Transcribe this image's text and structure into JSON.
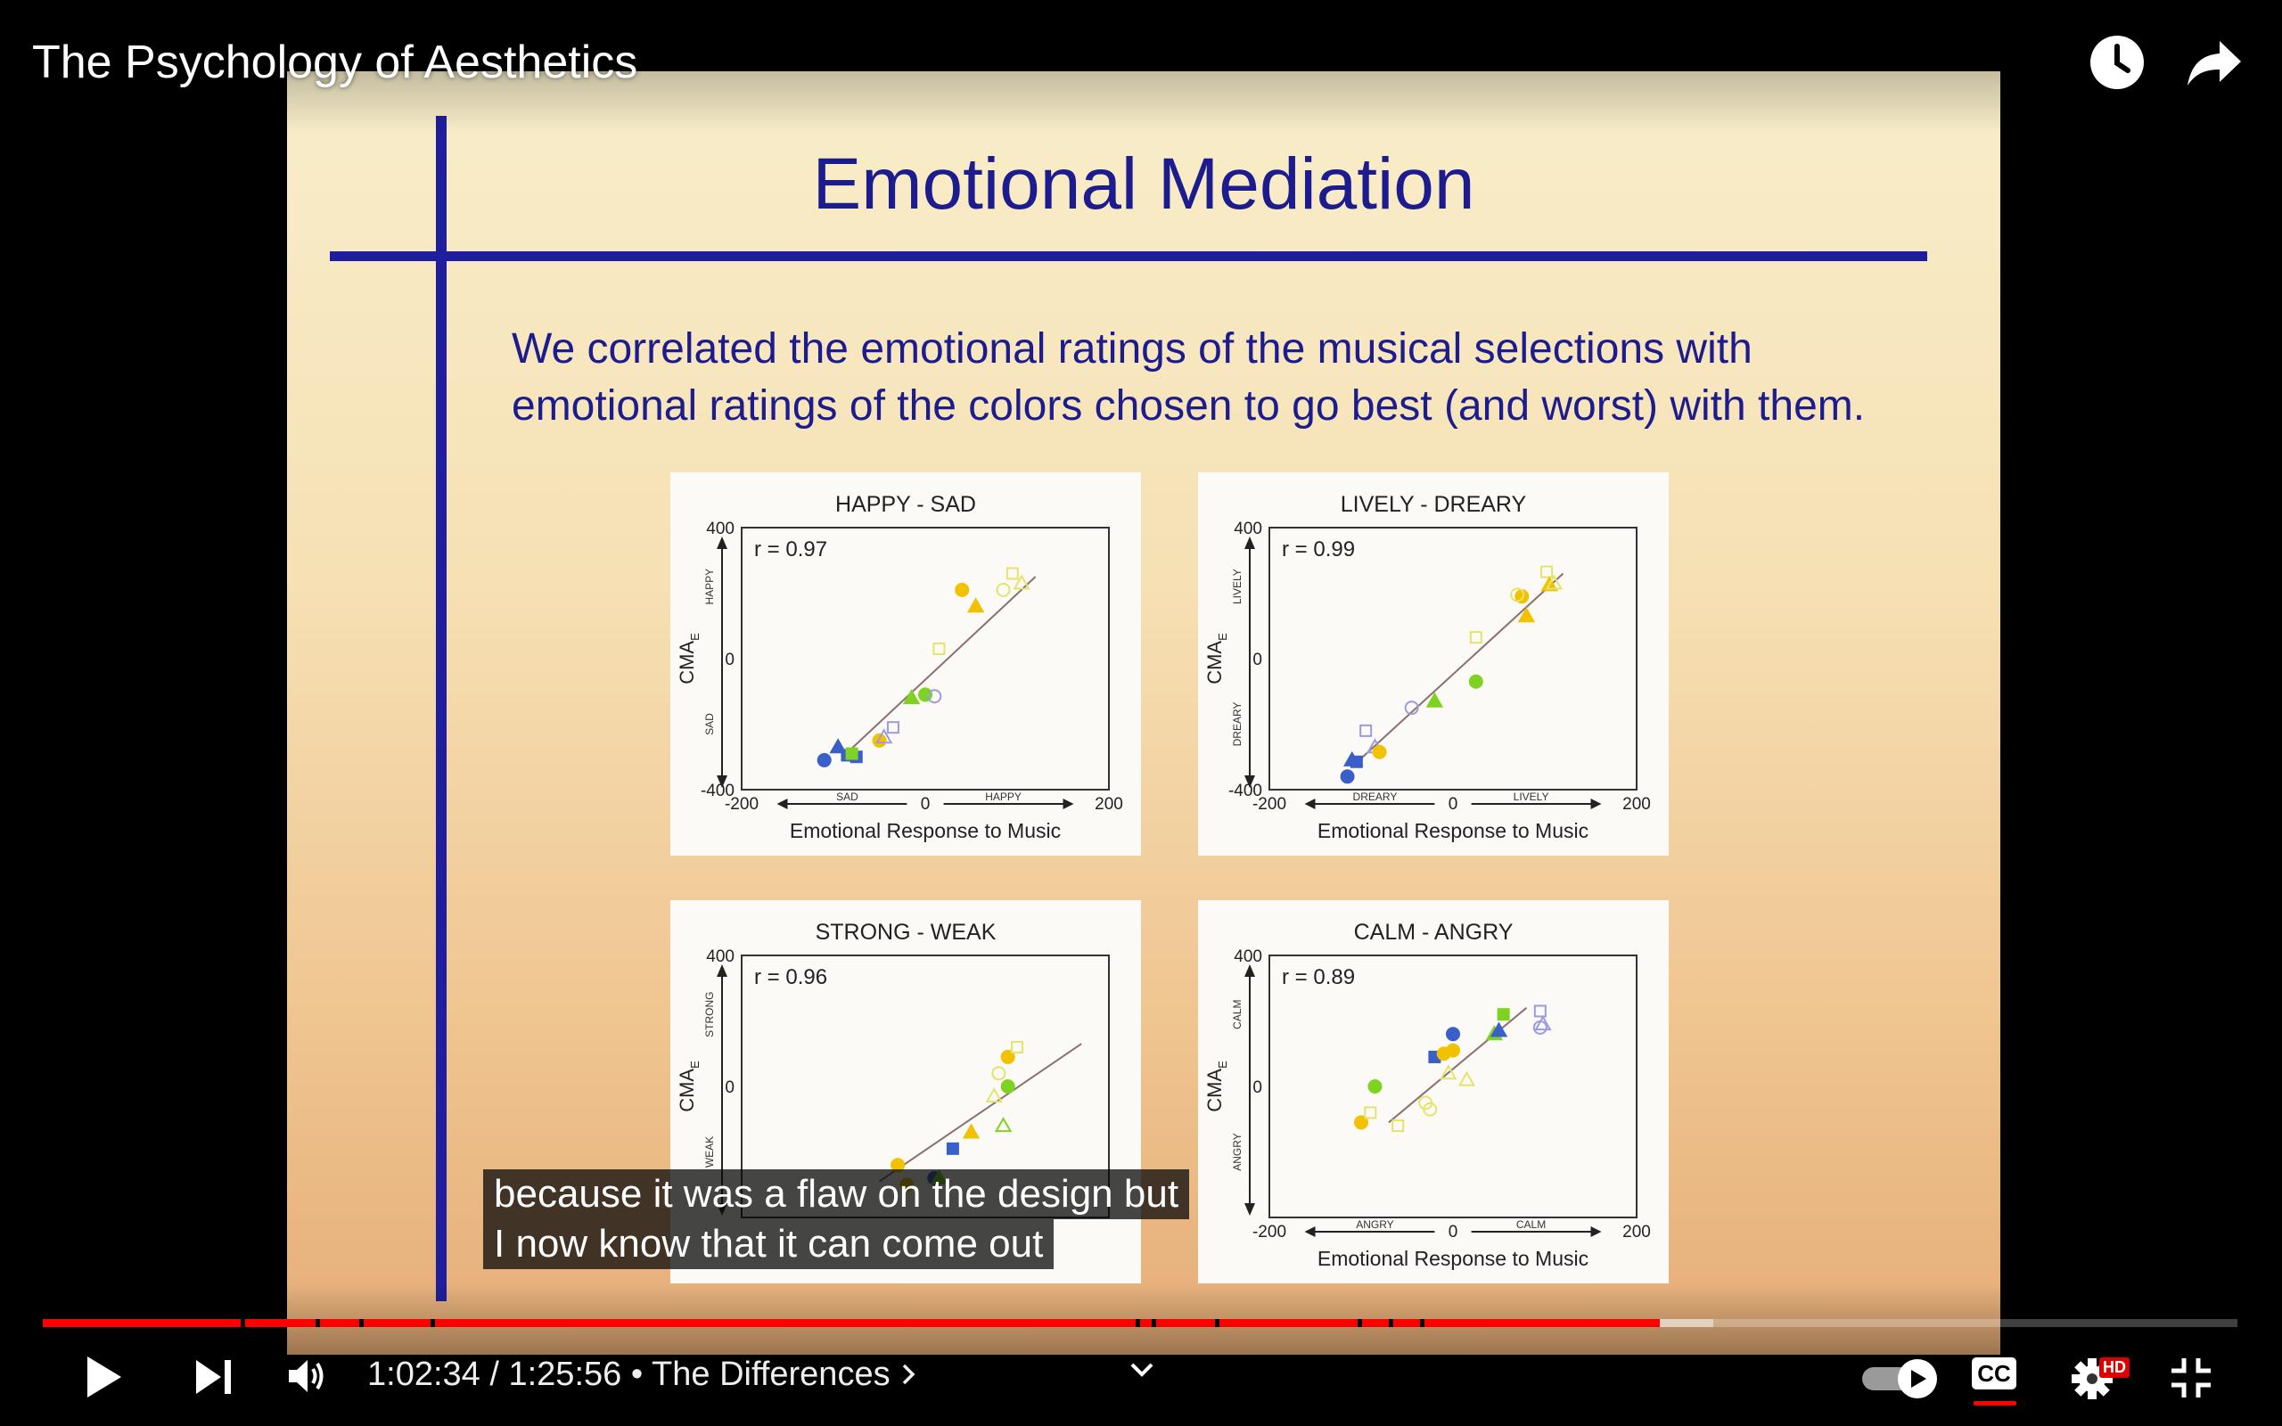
{
  "video": {
    "title": "The Psychology of Aesthetics",
    "time_current": "1:02:34",
    "time_duration": "1:25:56",
    "time_separator": "/",
    "chapter": "The Differences",
    "progress_played": 0.737,
    "progress_loaded": 0.761
  },
  "slide": {
    "title": "Emotional Mediation",
    "body_line1": "We correlated the emotional ratings of the musical selections with",
    "body_line2": "emotional ratings of the colors chosen to go best (and worst) with them."
  },
  "captions": {
    "line1": "because it was a flaw on the design but",
    "line2": "I now know that it can come out"
  },
  "controls": {
    "cc_label": "CC",
    "hd_label": "HD",
    "icons": [
      "play-icon",
      "next-icon",
      "volume-icon",
      "chevron-right-icon",
      "chevron-down-icon",
      "autoplay-toggle-icon",
      "cc-icon",
      "settings-icon",
      "exit-fullscreen-icon",
      "watch-later-icon",
      "share-icon"
    ]
  },
  "chart_data": [
    {
      "type": "scatter",
      "title": "HAPPY - SAD",
      "r_label": "r = 0.97",
      "xlabel": "Emotional Response to Music",
      "ylabel": "CMA",
      "ylabel_sub": "E",
      "xlim": [
        -200,
        200
      ],
      "ylim": [
        -400,
        400
      ],
      "xticks": [
        "-200",
        "0",
        "200"
      ],
      "yticks": [
        "400",
        "0",
        "-400"
      ],
      "x_neg": "SAD",
      "x_pos": "HAPPY",
      "y_neg": "SAD",
      "y_pos": "HAPPY",
      "trend": [
        [
          -90,
          -300
        ],
        [
          120,
          250
        ]
      ],
      "points": [
        {
          "x": -110,
          "y": -310,
          "shape": "circle",
          "fill": true,
          "color": "#3a5fc8"
        },
        {
          "x": -95,
          "y": -270,
          "shape": "triangle",
          "fill": true,
          "color": "#3a5fc8"
        },
        {
          "x": -85,
          "y": -295,
          "shape": "square",
          "fill": true,
          "color": "#3a5fc8"
        },
        {
          "x": -75,
          "y": -300,
          "shape": "square",
          "fill": true,
          "color": "#3a5fc8"
        },
        {
          "x": -80,
          "y": -290,
          "shape": "square",
          "fill": true,
          "color": "#7ed321"
        },
        {
          "x": -50,
          "y": -250,
          "shape": "circle",
          "fill": true,
          "color": "#f2c200"
        },
        {
          "x": -45,
          "y": -240,
          "shape": "triangle",
          "fill": false,
          "color": "#9b9be0"
        },
        {
          "x": -35,
          "y": -210,
          "shape": "square",
          "fill": false,
          "color": "#9b9be0"
        },
        {
          "x": -15,
          "y": -120,
          "shape": "triangle",
          "fill": true,
          "color": "#7ed321"
        },
        {
          "x": 0,
          "y": -110,
          "shape": "circle",
          "fill": true,
          "color": "#7ed321"
        },
        {
          "x": 10,
          "y": -115,
          "shape": "circle",
          "fill": false,
          "color": "#9b9be0"
        },
        {
          "x": 15,
          "y": 30,
          "shape": "square",
          "fill": false,
          "color": "#e6e36a"
        },
        {
          "x": 40,
          "y": 210,
          "shape": "circle",
          "fill": true,
          "color": "#f2c200"
        },
        {
          "x": 55,
          "y": 160,
          "shape": "triangle",
          "fill": true,
          "color": "#f2c200"
        },
        {
          "x": 85,
          "y": 210,
          "shape": "circle",
          "fill": false,
          "color": "#e6e36a"
        },
        {
          "x": 95,
          "y": 260,
          "shape": "square",
          "fill": false,
          "color": "#e6e36a"
        },
        {
          "x": 105,
          "y": 230,
          "shape": "triangle",
          "fill": false,
          "color": "#e6e36a"
        }
      ]
    },
    {
      "type": "scatter",
      "title": "LIVELY - DREARY",
      "r_label": "r = 0.99",
      "xlabel": "Emotional Response to Music",
      "ylabel": "CMA",
      "ylabel_sub": "E",
      "xlim": [
        -200,
        200
      ],
      "ylim": [
        -400,
        400
      ],
      "xticks": [
        "-200",
        "0",
        "200"
      ],
      "yticks": [
        "400",
        "0",
        "-400"
      ],
      "x_neg": "DREARY",
      "x_pos": "LIVELY",
      "y_neg": "DREARY",
      "y_pos": "LIVELY",
      "trend": [
        [
          -110,
          -330
        ],
        [
          120,
          260
        ]
      ],
      "points": [
        {
          "x": -115,
          "y": -360,
          "shape": "circle",
          "fill": true,
          "color": "#3a5fc8"
        },
        {
          "x": -110,
          "y": -310,
          "shape": "triangle",
          "fill": true,
          "color": "#3a5fc8"
        },
        {
          "x": -105,
          "y": -315,
          "shape": "square",
          "fill": true,
          "color": "#3a5fc8"
        },
        {
          "x": -95,
          "y": -220,
          "shape": "square",
          "fill": false,
          "color": "#9b9be0"
        },
        {
          "x": -85,
          "y": -270,
          "shape": "triangle",
          "fill": false,
          "color": "#9b9be0"
        },
        {
          "x": -80,
          "y": -285,
          "shape": "circle",
          "fill": true,
          "color": "#f2c200"
        },
        {
          "x": -45,
          "y": -150,
          "shape": "circle",
          "fill": false,
          "color": "#9b9be0"
        },
        {
          "x": -20,
          "y": -130,
          "shape": "triangle",
          "fill": true,
          "color": "#7ed321"
        },
        {
          "x": 25,
          "y": 65,
          "shape": "square",
          "fill": false,
          "color": "#e6e36a"
        },
        {
          "x": 25,
          "y": -70,
          "shape": "circle",
          "fill": true,
          "color": "#7ed321"
        },
        {
          "x": 75,
          "y": 190,
          "shape": "circle",
          "fill": true,
          "color": "#f2c200"
        },
        {
          "x": 80,
          "y": 130,
          "shape": "triangle",
          "fill": true,
          "color": "#f2c200"
        },
        {
          "x": 70,
          "y": 195,
          "shape": "circle",
          "fill": false,
          "color": "#e6e36a"
        },
        {
          "x": 102,
          "y": 265,
          "shape": "square",
          "fill": false,
          "color": "#e6e36a"
        },
        {
          "x": 105,
          "y": 225,
          "shape": "triangle",
          "fill": true,
          "color": "#f2c200"
        },
        {
          "x": 110,
          "y": 230,
          "shape": "triangle",
          "fill": false,
          "color": "#e6e36a"
        }
      ]
    },
    {
      "type": "scatter",
      "title": "STRONG - WEAK",
      "r_label": "r = 0.96",
      "xlabel": "",
      "ylabel": "CMA",
      "ylabel_sub": "E",
      "xlim": [
        -200,
        200
      ],
      "ylim": [
        -400,
        400
      ],
      "xticks": [],
      "yticks": [
        "400",
        "0"
      ],
      "x_neg": "",
      "x_pos": "",
      "y_neg": "WEAK",
      "y_pos": "STRONG",
      "trend": [
        [
          -50,
          -290
        ],
        [
          170,
          130
        ]
      ],
      "points": [
        {
          "x": -30,
          "y": -240,
          "shape": "circle",
          "fill": true,
          "color": "#f2c200"
        },
        {
          "x": -20,
          "y": -300,
          "shape": "circle",
          "fill": true,
          "color": "#f2c200"
        },
        {
          "x": 10,
          "y": -280,
          "shape": "circle",
          "fill": true,
          "color": "#3a5fc8"
        },
        {
          "x": 15,
          "y": -280,
          "shape": "triangle",
          "fill": true,
          "color": "#7ed321"
        },
        {
          "x": 30,
          "y": -190,
          "shape": "square",
          "fill": true,
          "color": "#3a5fc8"
        },
        {
          "x": 50,
          "y": -140,
          "shape": "triangle",
          "fill": true,
          "color": "#f2c200"
        },
        {
          "x": 75,
          "y": -30,
          "shape": "triangle",
          "fill": false,
          "color": "#e6e36a"
        },
        {
          "x": 80,
          "y": 40,
          "shape": "circle",
          "fill": false,
          "color": "#e6e36a"
        },
        {
          "x": 85,
          "y": -120,
          "shape": "triangle",
          "fill": false,
          "color": "#7ed321"
        },
        {
          "x": 90,
          "y": 0,
          "shape": "circle",
          "fill": true,
          "color": "#7ed321"
        },
        {
          "x": 90,
          "y": 90,
          "shape": "circle",
          "fill": true,
          "color": "#f2c200"
        },
        {
          "x": 100,
          "y": 120,
          "shape": "square",
          "fill": false,
          "color": "#e6e36a"
        }
      ]
    },
    {
      "type": "scatter",
      "title": "CALM - ANGRY",
      "r_label": "r = 0.89",
      "xlabel": "Emotional Response to Music",
      "ylabel": "CMA",
      "ylabel_sub": "E",
      "xlim": [
        -200,
        200
      ],
      "ylim": [
        -400,
        400
      ],
      "xticks": [
        "-200",
        "0",
        "200"
      ],
      "yticks": [
        "400",
        "0"
      ],
      "x_neg": "ANGRY",
      "x_pos": "CALM",
      "y_neg": "ANGRY",
      "y_pos": "CALM",
      "trend": [
        [
          -70,
          -110
        ],
        [
          80,
          240
        ]
      ],
      "points": [
        {
          "x": -100,
          "y": -110,
          "shape": "circle",
          "fill": true,
          "color": "#f2c200"
        },
        {
          "x": -90,
          "y": -80,
          "shape": "square",
          "fill": false,
          "color": "#e6e36a"
        },
        {
          "x": -85,
          "y": 0,
          "shape": "circle",
          "fill": true,
          "color": "#7ed321"
        },
        {
          "x": -60,
          "y": -120,
          "shape": "square",
          "fill": false,
          "color": "#e6e36a"
        },
        {
          "x": -30,
          "y": -50,
          "shape": "circle",
          "fill": false,
          "color": "#e6e36a"
        },
        {
          "x": -25,
          "y": -70,
          "shape": "circle",
          "fill": false,
          "color": "#e6e36a"
        },
        {
          "x": -20,
          "y": 90,
          "shape": "square",
          "fill": true,
          "color": "#3a5fc8"
        },
        {
          "x": -10,
          "y": 100,
          "shape": "circle",
          "fill": true,
          "color": "#f2c200"
        },
        {
          "x": 0,
          "y": 110,
          "shape": "circle",
          "fill": true,
          "color": "#f2c200"
        },
        {
          "x": -5,
          "y": 40,
          "shape": "triangle",
          "fill": false,
          "color": "#e6e36a"
        },
        {
          "x": 0,
          "y": 160,
          "shape": "circle",
          "fill": true,
          "color": "#3a5fc8"
        },
        {
          "x": 15,
          "y": 20,
          "shape": "triangle",
          "fill": false,
          "color": "#e6e36a"
        },
        {
          "x": 45,
          "y": 160,
          "shape": "triangle",
          "fill": true,
          "color": "#7ed321"
        },
        {
          "x": 50,
          "y": 170,
          "shape": "triangle",
          "fill": true,
          "color": "#3a5fc8"
        },
        {
          "x": 55,
          "y": 220,
          "shape": "square",
          "fill": true,
          "color": "#7ed321"
        },
        {
          "x": 95,
          "y": 230,
          "shape": "square",
          "fill": false,
          "color": "#9b9be0"
        },
        {
          "x": 95,
          "y": 180,
          "shape": "circle",
          "fill": false,
          "color": "#9b9be0"
        },
        {
          "x": 98,
          "y": 190,
          "shape": "triangle",
          "fill": false,
          "color": "#9b9be0"
        }
      ]
    }
  ]
}
